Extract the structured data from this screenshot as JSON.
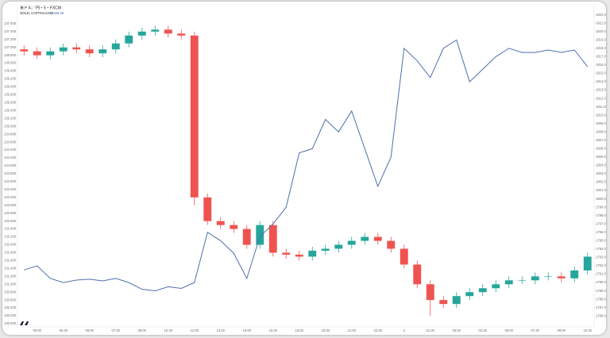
{
  "chart_data": {
    "type": "candlestick",
    "title": "米ドル／円・5・FXCM",
    "subtitle": "GOLD, CAPITALCOM",
    "annotation": "1836.35",
    "categories": [
      null,
      "05:00",
      null,
      "05:30",
      null,
      "06:00",
      null,
      "07:30",
      null,
      "08:00",
      null,
      "10:30",
      null,
      "12:00",
      null,
      "13:30",
      null,
      "15:00",
      null,
      "16:30",
      null,
      "18:00",
      null,
      "19:30",
      null,
      "21:00",
      null,
      "22:30",
      null,
      "2",
      null,
      "01:30",
      null,
      "03:00",
      null,
      "04:30",
      null,
      "06:00",
      null,
      "07:30",
      null,
      "09:00",
      null,
      "10:30"
    ],
    "series": [
      {
        "name": "米ドル／円",
        "up_color": "#26a69a",
        "down_color": "#ef5350",
        "open": [
          136.95,
          136.9,
          136.8,
          136.9,
          137.0,
          136.95,
          136.85,
          136.95,
          137.1,
          137.3,
          137.4,
          137.45,
          137.35,
          137.3,
          133.2,
          132.6,
          132.5,
          132.4,
          132.0,
          132.5,
          131.8,
          131.75,
          131.7,
          131.85,
          131.9,
          132.0,
          132.1,
          132.2,
          132.1,
          131.9,
          131.5,
          131.0,
          130.6,
          130.5,
          130.7,
          130.8,
          130.9,
          131.0,
          131.1,
          131.1,
          131.2,
          131.2,
          131.15,
          131.35
        ],
        "high": [
          137.05,
          137.0,
          137.0,
          137.1,
          137.1,
          137.05,
          137.05,
          137.2,
          137.4,
          137.5,
          137.55,
          137.55,
          137.45,
          137.4,
          133.3,
          132.7,
          132.6,
          132.5,
          132.6,
          132.6,
          131.9,
          131.85,
          131.95,
          132.0,
          132.1,
          132.2,
          132.3,
          132.3,
          132.2,
          132.0,
          131.6,
          131.1,
          130.7,
          130.8,
          130.9,
          131.0,
          131.1,
          131.2,
          131.2,
          131.3,
          131.3,
          131.3,
          131.45,
          131.8
        ],
        "low": [
          136.8,
          136.7,
          136.7,
          136.8,
          136.85,
          136.75,
          136.75,
          136.85,
          137.0,
          137.2,
          137.3,
          137.25,
          137.2,
          133.0,
          132.5,
          132.4,
          132.3,
          131.9,
          131.9,
          131.7,
          131.65,
          131.6,
          131.6,
          131.75,
          131.8,
          131.9,
          132.0,
          132.0,
          131.8,
          131.4,
          130.9,
          130.2,
          130.4,
          130.4,
          130.6,
          130.7,
          130.8,
          130.9,
          131.0,
          131.0,
          131.1,
          131.05,
          131.05,
          131.25
        ],
        "close": [
          136.9,
          136.8,
          136.9,
          137.0,
          136.95,
          136.85,
          136.95,
          137.1,
          137.3,
          137.4,
          137.45,
          137.35,
          137.3,
          133.2,
          132.6,
          132.5,
          132.4,
          132.0,
          132.5,
          131.8,
          131.75,
          131.7,
          131.85,
          131.9,
          132.0,
          132.1,
          132.2,
          132.1,
          131.9,
          131.5,
          131.0,
          130.6,
          130.5,
          130.7,
          130.8,
          130.9,
          131.0,
          131.1,
          131.1,
          131.2,
          131.2,
          131.15,
          131.35,
          131.7
        ]
      },
      {
        "name": "GOLD",
        "type": "line",
        "axis": "y2",
        "color": "#4e6fae",
        "values": [
          1791.5,
          1792.0,
          1790.5,
          1790.0,
          1790.3,
          1790.4,
          1790.2,
          1790.5,
          1790.0,
          1789.2,
          1789.0,
          1789.5,
          1789.3,
          1790.0,
          1796.0,
          1795.0,
          1793.5,
          1790.5,
          1795.5,
          1797.0,
          1799.0,
          1805.5,
          1806.0,
          1809.5,
          1808.0,
          1810.5,
          1806.0,
          1801.5,
          1805.0,
          1818.0,
          1816.5,
          1814.5,
          1818.0,
          1819.0,
          1814.0,
          1815.5,
          1817.0,
          1818.0,
          1817.5,
          1817.5,
          1817.8,
          1817.5,
          1817.8,
          1815.8
        ]
      }
    ],
    "ylim": [
      129.92,
      138.1
    ],
    "yticks": [
      {
        "value": 137.6,
        "label": "137.600"
      },
      {
        "value": 137.4,
        "label": "137.400"
      },
      {
        "value": 137.2,
        "label": "137.200"
      },
      {
        "value": 137.0,
        "label": "137.000"
      },
      {
        "value": 136.8,
        "label": "136.800"
      },
      {
        "value": 136.6,
        "label": "136.600"
      },
      {
        "value": 136.4,
        "label": "136.400"
      },
      {
        "value": 136.2,
        "label": "136.200"
      },
      {
        "value": 136.0,
        "label": "136.000"
      },
      {
        "value": 135.8,
        "label": "135.800"
      },
      {
        "value": 135.6,
        "label": "135.600"
      },
      {
        "value": 135.4,
        "label": "135.400"
      },
      {
        "value": 135.2,
        "label": "135.200"
      },
      {
        "value": 135.0,
        "label": "135.000"
      },
      {
        "value": 134.8,
        "label": "134.800"
      },
      {
        "value": 134.6,
        "label": "134.600"
      },
      {
        "value": 134.4,
        "label": "134.400"
      },
      {
        "value": 134.2,
        "label": "134.200"
      },
      {
        "value": 134.0,
        "label": "134.000"
      },
      {
        "value": 133.8,
        "label": "133.800"
      },
      {
        "value": 133.6,
        "label": "133.600"
      },
      {
        "value": 133.4,
        "label": "133.400"
      },
      {
        "value": 133.2,
        "label": "133.200"
      },
      {
        "value": 133.0,
        "label": "133.000"
      },
      {
        "value": 132.8,
        "label": "132.800"
      },
      {
        "value": 132.6,
        "label": "132.600"
      },
      {
        "value": 132.4,
        "label": "132.400"
      },
      {
        "value": 132.2,
        "label": "132.200"
      },
      {
        "value": 132.0,
        "label": "132.000"
      },
      {
        "value": 131.8,
        "label": "131.800"
      },
      {
        "value": 131.6,
        "label": "131.600"
      },
      {
        "value": 131.4,
        "label": "131.400"
      },
      {
        "value": 131.2,
        "label": "131.200"
      },
      {
        "value": 131.0,
        "label": "131.000"
      },
      {
        "value": 130.8,
        "label": "130.800"
      },
      {
        "value": 130.6,
        "label": "130.600"
      },
      {
        "value": 130.4,
        "label": "130.400"
      },
      {
        "value": 130.2,
        "label": "130.200"
      },
      {
        "value": 130.0,
        "label": "130.000"
      }
    ],
    "y2lim": [
      1784.7,
      1823.3
    ],
    "y2ticks": [
      {
        "value": 1822,
        "label": "1822.00"
      },
      {
        "value": 1821,
        "label": "1821.00"
      },
      {
        "value": 1820,
        "label": "1820.00"
      },
      {
        "value": 1819,
        "label": "1819.00"
      },
      {
        "value": 1818,
        "label": "1818.00"
      },
      {
        "value": 1817,
        "label": "1817.00"
      },
      {
        "value": 1816,
        "label": "1816.00"
      },
      {
        "value": 1815,
        "label": "1815.00"
      },
      {
        "value": 1814,
        "label": "1814.00"
      },
      {
        "value": 1813,
        "label": "1813.00"
      },
      {
        "value": 1812,
        "label": "1812.00"
      },
      {
        "value": 1811,
        "label": "1811.00"
      },
      {
        "value": 1810,
        "label": "1810.00"
      },
      {
        "value": 1809,
        "label": "1809.00"
      },
      {
        "value": 1808,
        "label": "1808.00"
      },
      {
        "value": 1807,
        "label": "1807.00"
      },
      {
        "value": 1806,
        "label": "1806.00"
      },
      {
        "value": 1805,
        "label": "1805.00"
      },
      {
        "value": 1804,
        "label": "1804.00"
      },
      {
        "value": 1803,
        "label": "1803.00"
      },
      {
        "value": 1802,
        "label": "1802.00"
      },
      {
        "value": 1801,
        "label": "1801.00"
      },
      {
        "value": 1800,
        "label": "1800.00"
      },
      {
        "value": 1799,
        "label": "1799.00"
      },
      {
        "value": 1798,
        "label": "1798.00"
      },
      {
        "value": 1797,
        "label": "1797.00"
      },
      {
        "value": 1796,
        "label": "1796.00"
      },
      {
        "value": 1795,
        "label": "1795.00"
      },
      {
        "value": 1794,
        "label": "1794.00"
      },
      {
        "value": 1793,
        "label": "1793.00"
      },
      {
        "value": 1792,
        "label": "1792.00"
      },
      {
        "value": 1791,
        "label": "1791.00"
      },
      {
        "value": 1790,
        "label": "1790.00"
      },
      {
        "value": 1789,
        "label": "1789.00"
      },
      {
        "value": 1788,
        "label": "1788.00"
      },
      {
        "value": 1787,
        "label": "1787.00"
      },
      {
        "value": 1786,
        "label": "1786.00"
      }
    ],
    "grid": false
  }
}
